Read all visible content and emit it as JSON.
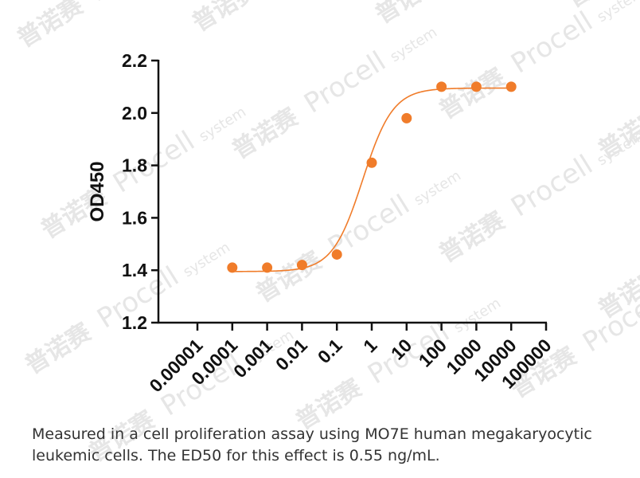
{
  "chart_data": {
    "type": "scatter",
    "ylabel": "OD450",
    "xlabel": "",
    "x_scale": "log",
    "x_ticks": [
      1e-05,
      0.0001,
      0.001,
      0.01,
      0.1,
      1,
      10,
      100,
      1000,
      10000,
      100000
    ],
    "x_tick_labels": [
      "0.00001",
      "0.0001",
      "0.001",
      "0.01",
      "0.1",
      "1",
      "10",
      "100",
      "1000",
      "10000",
      "100000"
    ],
    "ylim": [
      1.2,
      2.2
    ],
    "y_ticks": [
      1.2,
      1.4,
      1.6,
      1.8,
      2.0,
      2.2
    ],
    "y_tick_labels": [
      "1.2",
      "1.4",
      "1.6",
      "1.8",
      "2.0",
      "2.2"
    ],
    "grid": false,
    "series": [
      {
        "color": "#F07C2A",
        "points": [
          {
            "x": 0.0001,
            "y": 1.41
          },
          {
            "x": 0.001,
            "y": 1.41
          },
          {
            "x": 0.01,
            "y": 1.42
          },
          {
            "x": 0.1,
            "y": 1.46
          },
          {
            "x": 1,
            "y": 1.81
          },
          {
            "x": 10,
            "y": 1.98
          },
          {
            "x": 100,
            "y": 2.1
          },
          {
            "x": 1000,
            "y": 2.1
          },
          {
            "x": 10000,
            "y": 2.1
          }
        ],
        "fit_curve": {
          "bottom": 1.395,
          "top": 2.095,
          "ec50": 0.55,
          "hill": 1.0
        }
      }
    ]
  },
  "caption": "Measured in a cell proliferation assay using MO7E human megakaryocytic leukemic cells. The ED50 for this effect is 0.55 ng/mL.",
  "watermark": {
    "cn": "普诺赛",
    "en": "Procell",
    "small": "system",
    "color": "#e6e6e6"
  }
}
